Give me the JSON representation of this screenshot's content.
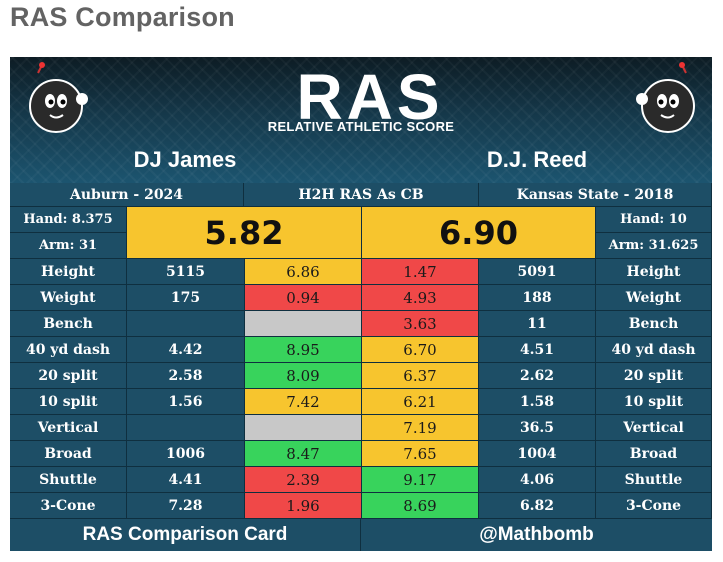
{
  "page": {
    "title": "RAS Comparison"
  },
  "header": {
    "logo_text": "RAS",
    "subtitle": "RELATIVE ATHLETIC SCORE"
  },
  "players": {
    "left": {
      "name": "DJ James",
      "school": "Auburn - 2024",
      "hand": "Hand: 8.375",
      "arm": "Arm: 31",
      "ras": "5.82"
    },
    "right": {
      "name": "D.J. Reed",
      "school": "Kansas State - 2018",
      "hand": "Hand: 10",
      "arm": "Arm: 31.625",
      "ras": "6.90"
    }
  },
  "center_header": "H2H RAS As CB",
  "rows": [
    {
      "label": "Height",
      "l_raw": "5115",
      "l_score": "6.86",
      "l_color": "yellow",
      "r_score": "1.47",
      "r_color": "red",
      "r_raw": "5091"
    },
    {
      "label": "Weight",
      "l_raw": "175",
      "l_score": "0.94",
      "l_color": "red",
      "r_score": "4.93",
      "r_color": "red",
      "r_raw": "188"
    },
    {
      "label": "Bench",
      "l_raw": "",
      "l_score": "",
      "l_color": "gray",
      "r_score": "3.63",
      "r_color": "red",
      "r_raw": "11"
    },
    {
      "label": "40 yd dash",
      "l_raw": "4.42",
      "l_score": "8.95",
      "l_color": "green",
      "r_score": "6.70",
      "r_color": "yellow",
      "r_raw": "4.51"
    },
    {
      "label": "20 split",
      "l_raw": "2.58",
      "l_score": "8.09",
      "l_color": "green",
      "r_score": "6.37",
      "r_color": "yellow",
      "r_raw": "2.62"
    },
    {
      "label": "10 split",
      "l_raw": "1.56",
      "l_score": "7.42",
      "l_color": "yellow",
      "r_score": "6.21",
      "r_color": "yellow",
      "r_raw": "1.58"
    },
    {
      "label": "Vertical",
      "l_raw": "",
      "l_score": "",
      "l_color": "gray",
      "r_score": "7.19",
      "r_color": "yellow",
      "r_raw": "36.5"
    },
    {
      "label": "Broad",
      "l_raw": "1006",
      "l_score": "8.47",
      "l_color": "green",
      "r_score": "7.65",
      "r_color": "yellow",
      "r_raw": "1004"
    },
    {
      "label": "Shuttle",
      "l_raw": "4.41",
      "l_score": "2.39",
      "l_color": "red",
      "r_score": "9.17",
      "r_color": "green",
      "r_raw": "4.06"
    },
    {
      "label": "3-Cone",
      "l_raw": "7.28",
      "l_score": "1.96",
      "l_color": "red",
      "r_score": "8.69",
      "r_color": "green",
      "r_raw": "6.82"
    }
  ],
  "footer": {
    "left": "RAS Comparison Card",
    "right": "@Mathbomb"
  },
  "colors": {
    "yellow": "#f7c52e",
    "red": "#f04848",
    "green": "#38d35c",
    "gray": "#c8c8c8",
    "panel": "#1d4e66"
  },
  "icons": {
    "mascot": "bomb-mascot-icon"
  }
}
